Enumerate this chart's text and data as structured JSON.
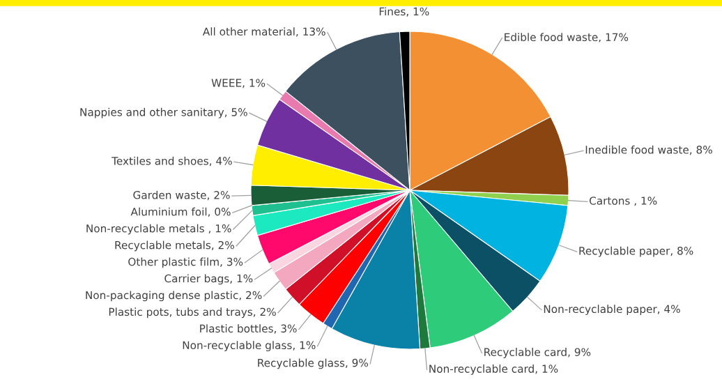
{
  "chart_data": {
    "type": "pie",
    "categories": [
      "Edible food waste",
      "Inedible food waste",
      "Cartons ",
      "Recyclable paper",
      "Non-recyclable paper",
      "Recyclable card",
      "Non-recyclable card",
      "Recyclable glass",
      "Non-recyclable glass",
      "Plastic bottles",
      "Plastic pots, tubs and trays",
      "Non-packaging dense plastic",
      "Carrier bags",
      "Other plastic film",
      "Recyclable metals",
      "Non-recyclable metals ",
      "Aluminium foil",
      "Garden waste",
      "Textiles and shoes",
      "Nappies and other sanitary",
      "WEEE",
      "All other material",
      "Fines"
    ],
    "values": [
      17,
      8,
      1,
      8,
      4,
      9,
      1,
      9,
      1,
      3,
      2,
      2,
      1,
      3,
      2,
      1,
      0,
      2,
      4,
      5,
      1,
      13,
      1
    ],
    "colors": [
      "#f39033",
      "#8b4510",
      "#8fd14f",
      "#00b3e0",
      "#0b5064",
      "#2ecc7a",
      "#1e7a3c",
      "#0a82a8",
      "#2066b0",
      "#ff0000",
      "#d01028",
      "#f4a8c0",
      "#fad6e2",
      "#ff0a6c",
      "#1de9c0",
      "#1fbf8f",
      "#33dd33",
      "#1a5e38",
      "#ffee00",
      "#7030a0",
      "#e87ab0",
      "#3d5060",
      "#000000"
    ],
    "value_labels": [
      "17%",
      "8%",
      "1%",
      "8%",
      "4%",
      "9%",
      "1%",
      "9%",
      "1%",
      "3%",
      "2%",
      "2%",
      "1%",
      "3%",
      "2%",
      "1%",
      "0%",
      "2%",
      "4%",
      "5%",
      "1%",
      "13%",
      "1%"
    ]
  }
}
